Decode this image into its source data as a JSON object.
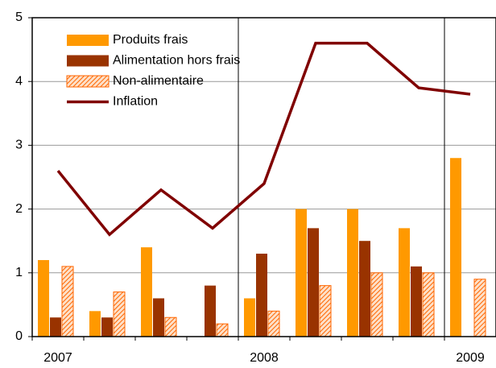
{
  "chart_data": {
    "type": "bar_line",
    "categories": [
      "2007",
      null,
      null,
      null,
      "2008",
      null,
      null,
      null,
      "2009"
    ],
    "series": [
      {
        "name": "Produits frais",
        "type": "bar",
        "color": "#ff9900",
        "values": [
          1.2,
          0.4,
          1.4,
          null,
          0.6,
          2.0,
          2.0,
          1.7,
          2.8
        ]
      },
      {
        "name": "Alimentation hors frais",
        "type": "bar",
        "color": "#993300",
        "values": [
          0.3,
          0.3,
          0.6,
          0.8,
          1.3,
          1.7,
          1.5,
          1.1,
          null
        ]
      },
      {
        "name": "Non-alimentaire",
        "type": "bar",
        "color": "#ff6600",
        "hatched": true,
        "values": [
          1.1,
          0.7,
          0.3,
          0.2,
          0.4,
          0.8,
          1.0,
          1.0,
          0.9
        ]
      },
      {
        "name": "Inflation",
        "type": "line",
        "color": "#800000",
        "values": [
          2.6,
          1.6,
          2.3,
          1.7,
          2.4,
          4.6,
          4.6,
          3.9,
          3.8
        ]
      }
    ],
    "ylim": [
      0,
      5
    ],
    "yticks": [
      0,
      1,
      2,
      3,
      4,
      5
    ],
    "grid": true,
    "legend": "top-left"
  }
}
